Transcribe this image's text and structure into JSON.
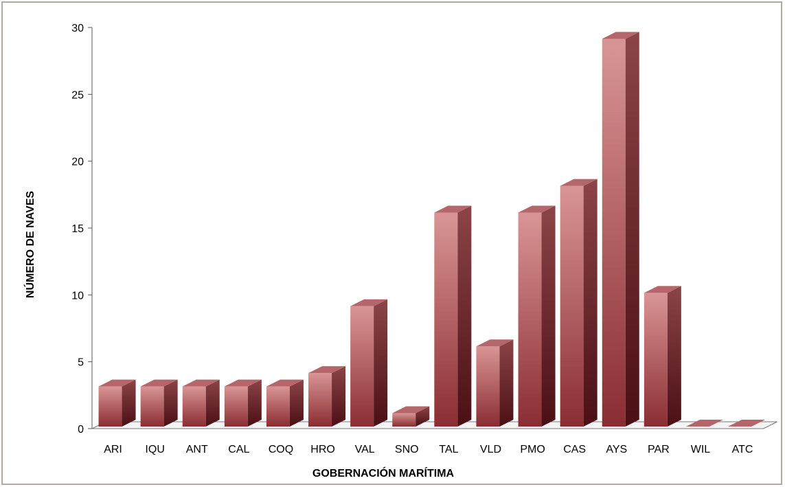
{
  "chart_data": {
    "type": "bar",
    "title": "",
    "xlabel": "GOBERNACIÓN MARÍTIMA",
    "ylabel": "NÚMERO DE NAVES",
    "ylim": [
      0,
      30
    ],
    "yticks": [
      0,
      5,
      10,
      15,
      20,
      25,
      30
    ],
    "grid": false,
    "legend": "none",
    "categories": [
      "ARI",
      "IQU",
      "ANT",
      "CAL",
      "COQ",
      "HRO",
      "VAL",
      "SNO",
      "TAL",
      "VLD",
      "PMO",
      "CAS",
      "AYS",
      "PAR",
      "WIL",
      "ATC"
    ],
    "values": [
      3,
      3,
      3,
      3,
      3,
      4,
      9,
      1,
      16,
      6,
      16,
      18,
      29,
      10,
      0,
      0
    ],
    "colors": {
      "bar_front_top": "#d99595",
      "bar_front_bottom": "#8a2d32",
      "bar_side_top": "#8c4448",
      "bar_side_bottom": "#4a0f14",
      "bar_top": "#b5666a"
    }
  }
}
